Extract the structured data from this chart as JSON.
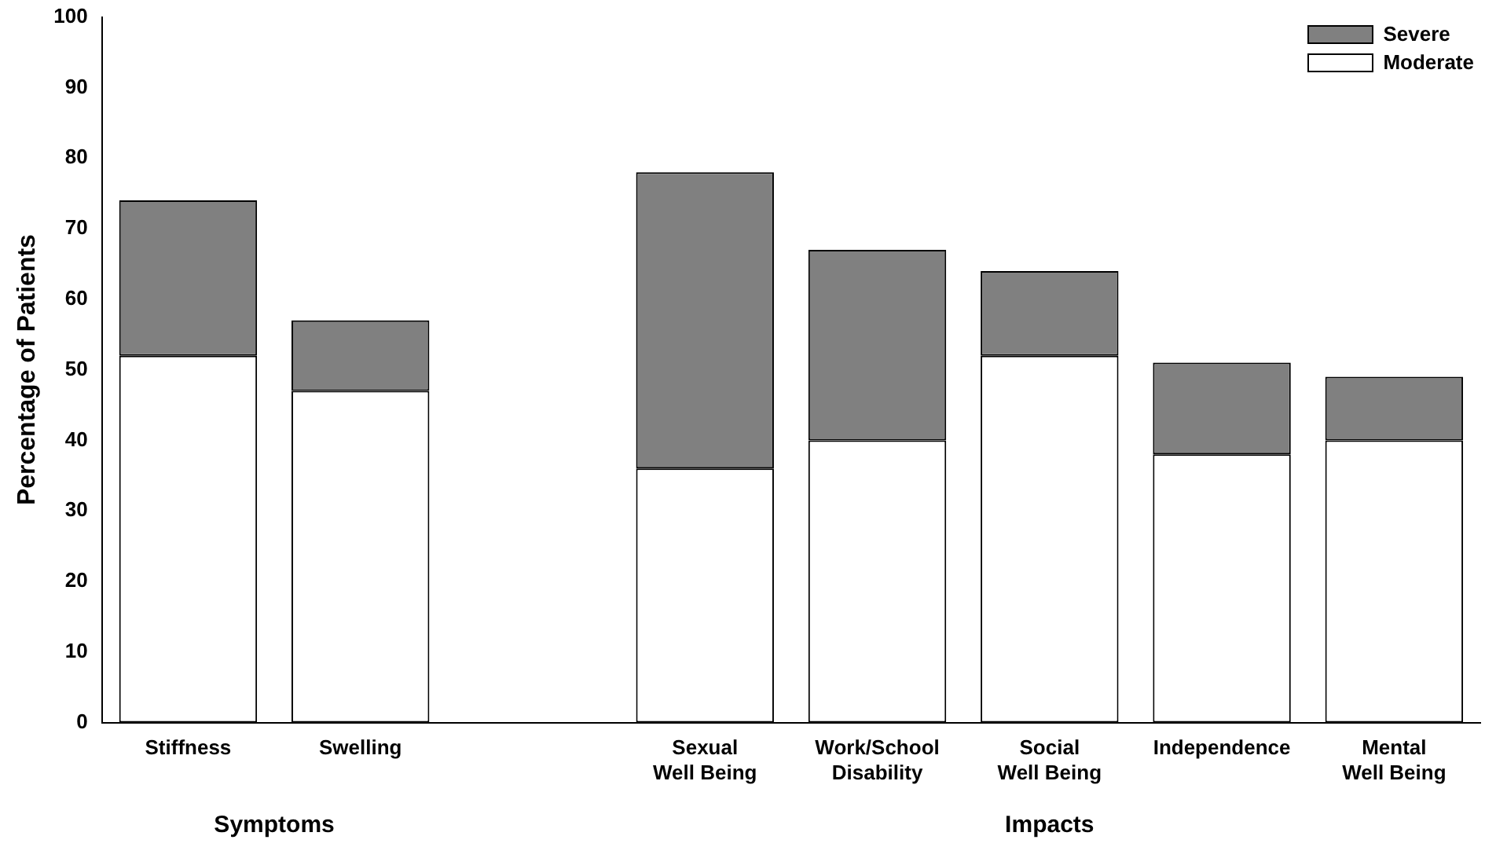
{
  "chart_data": {
    "type": "bar",
    "stacked": true,
    "ylabel": "Percentage of Patients",
    "categories": [
      "Stiffness",
      "Swelling",
      null,
      "Sexual\nWell Being",
      "Work/School\nDisability",
      "Social\nWell Being",
      "Independence",
      "Mental\nWell Being"
    ],
    "series": [
      {
        "name": "Moderate",
        "color": "#ffffff",
        "values": [
          52,
          47,
          null,
          36,
          40,
          52,
          38,
          40
        ]
      },
      {
        "name": "Severe",
        "color": "#808080",
        "values": [
          22,
          10,
          null,
          42,
          27,
          12,
          13,
          9
        ]
      }
    ],
    "ylim": [
      0,
      100
    ],
    "yticks": [
      0,
      10,
      20,
      30,
      40,
      50,
      60,
      70,
      80,
      90,
      100
    ],
    "grid": false,
    "legend": "top right",
    "annotations": [
      "Symptoms",
      "Impacts"
    ]
  }
}
